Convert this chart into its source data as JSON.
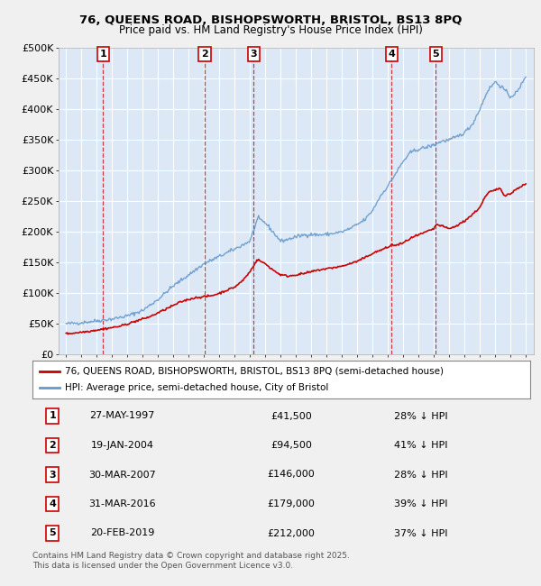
{
  "title_line1": "76, QUEENS ROAD, BISHOPSWORTH, BRISTOL, BS13 8PQ",
  "title_line2": "Price paid vs. HM Land Registry's House Price Index (HPI)",
  "background_color": "#f0f0f0",
  "plot_bg_color": "#dce8f5",
  "grid_color": "#ffffff",
  "transactions": [
    {
      "num": 1,
      "date": "27-MAY-1997",
      "date_num": 1997.41,
      "price": 41500,
      "pct": "28% ↓ HPI"
    },
    {
      "num": 2,
      "date": "19-JAN-2004",
      "date_num": 2004.05,
      "price": 94500,
      "pct": "41% ↓ HPI"
    },
    {
      "num": 3,
      "date": "30-MAR-2007",
      "date_num": 2007.25,
      "price": 146000,
      "pct": "28% ↓ HPI"
    },
    {
      "num": 4,
      "date": "31-MAR-2016",
      "date_num": 2016.25,
      "price": 179000,
      "pct": "39% ↓ HPI"
    },
    {
      "num": 5,
      "date": "20-FEB-2019",
      "date_num": 2019.13,
      "price": 212000,
      "pct": "37% ↓ HPI"
    }
  ],
  "legend_line1": "76, QUEENS ROAD, BISHOPSWORTH, BRISTOL, BS13 8PQ (semi-detached house)",
  "legend_line2": "HPI: Average price, semi-detached house, City of Bristol",
  "footer": "Contains HM Land Registry data © Crown copyright and database right 2025.\nThis data is licensed under the Open Government Licence v3.0.",
  "red_color": "#cc0000",
  "blue_color": "#6699cc",
  "ylim": [
    0,
    500000
  ],
  "xlim": [
    1994.5,
    2025.5
  ],
  "yticks": [
    0,
    50000,
    100000,
    150000,
    200000,
    250000,
    300000,
    350000,
    400000,
    450000,
    500000
  ],
  "ytick_labels": [
    "£0",
    "£50K",
    "£100K",
    "£150K",
    "£200K",
    "£250K",
    "£300K",
    "£350K",
    "£400K",
    "£450K",
    "£500K"
  ],
  "xticks": [
    1995,
    1996,
    1997,
    1998,
    1999,
    2000,
    2001,
    2002,
    2003,
    2004,
    2005,
    2006,
    2007,
    2008,
    2009,
    2010,
    2011,
    2012,
    2013,
    2014,
    2015,
    2016,
    2017,
    2018,
    2019,
    2020,
    2021,
    2022,
    2023,
    2024,
    2025
  ],
  "hpi_anchors": [
    [
      1995.0,
      50000
    ],
    [
      1996.0,
      52000
    ],
    [
      1997.0,
      55000
    ],
    [
      1998.0,
      58000
    ],
    [
      1999.0,
      63000
    ],
    [
      2000.0,
      72000
    ],
    [
      2001.0,
      90000
    ],
    [
      2002.0,
      112000
    ],
    [
      2003.0,
      130000
    ],
    [
      2004.0,
      148000
    ],
    [
      2005.0,
      160000
    ],
    [
      2006.0,
      172000
    ],
    [
      2007.0,
      185000
    ],
    [
      2007.5,
      222000
    ],
    [
      2008.0,
      215000
    ],
    [
      2008.5,
      200000
    ],
    [
      2009.0,
      185000
    ],
    [
      2009.5,
      188000
    ],
    [
      2010.0,
      192000
    ],
    [
      2010.5,
      195000
    ],
    [
      2011.0,
      196000
    ],
    [
      2011.5,
      195000
    ],
    [
      2012.0,
      196000
    ],
    [
      2012.5,
      198000
    ],
    [
      2013.0,
      200000
    ],
    [
      2013.5,
      205000
    ],
    [
      2014.0,
      212000
    ],
    [
      2014.5,
      220000
    ],
    [
      2015.0,
      235000
    ],
    [
      2015.5,
      258000
    ],
    [
      2016.0,
      275000
    ],
    [
      2016.5,
      295000
    ],
    [
      2017.0,
      315000
    ],
    [
      2017.5,
      330000
    ],
    [
      2018.0,
      335000
    ],
    [
      2018.5,
      338000
    ],
    [
      2019.0,
      342000
    ],
    [
      2019.5,
      348000
    ],
    [
      2020.0,
      350000
    ],
    [
      2020.5,
      355000
    ],
    [
      2021.0,
      362000
    ],
    [
      2021.5,
      375000
    ],
    [
      2022.0,
      400000
    ],
    [
      2022.5,
      430000
    ],
    [
      2023.0,
      445000
    ],
    [
      2023.5,
      435000
    ],
    [
      2024.0,
      420000
    ],
    [
      2024.5,
      430000
    ],
    [
      2025.0,
      455000
    ]
  ],
  "pp_anchors": [
    [
      1995.0,
      34000
    ],
    [
      1995.5,
      35000
    ],
    [
      1996.0,
      36500
    ],
    [
      1996.5,
      38000
    ],
    [
      1997.0,
      40000
    ],
    [
      1997.41,
      41500
    ],
    [
      1997.5,
      42000
    ],
    [
      1998.0,
      44000
    ],
    [
      1998.5,
      46000
    ],
    [
      1999.0,
      50000
    ],
    [
      1999.5,
      54000
    ],
    [
      2000.0,
      58000
    ],
    [
      2000.5,
      62000
    ],
    [
      2001.0,
      68000
    ],
    [
      2001.5,
      74000
    ],
    [
      2002.0,
      80000
    ],
    [
      2002.5,
      86000
    ],
    [
      2003.0,
      90000
    ],
    [
      2003.5,
      93000
    ],
    [
      2004.05,
      94500
    ],
    [
      2004.5,
      96000
    ],
    [
      2005.0,
      100000
    ],
    [
      2005.5,
      105000
    ],
    [
      2006.0,
      110000
    ],
    [
      2006.5,
      120000
    ],
    [
      2007.0,
      135000
    ],
    [
      2007.25,
      146000
    ],
    [
      2007.5,
      155000
    ],
    [
      2008.0,
      148000
    ],
    [
      2008.5,
      138000
    ],
    [
      2009.0,
      130000
    ],
    [
      2009.5,
      128000
    ],
    [
      2010.0,
      130000
    ],
    [
      2010.5,
      132000
    ],
    [
      2011.0,
      135000
    ],
    [
      2011.5,
      138000
    ],
    [
      2012.0,
      140000
    ],
    [
      2012.5,
      142000
    ],
    [
      2013.0,
      144000
    ],
    [
      2013.5,
      148000
    ],
    [
      2014.0,
      152000
    ],
    [
      2014.5,
      158000
    ],
    [
      2015.0,
      165000
    ],
    [
      2015.5,
      170000
    ],
    [
      2016.0,
      175000
    ],
    [
      2016.25,
      179000
    ],
    [
      2016.5,
      178000
    ],
    [
      2017.0,
      182000
    ],
    [
      2017.5,
      190000
    ],
    [
      2018.0,
      195000
    ],
    [
      2018.5,
      200000
    ],
    [
      2019.0,
      205000
    ],
    [
      2019.13,
      212000
    ],
    [
      2019.5,
      210000
    ],
    [
      2020.0,
      205000
    ],
    [
      2020.5,
      210000
    ],
    [
      2021.0,
      218000
    ],
    [
      2021.5,
      228000
    ],
    [
      2022.0,
      240000
    ],
    [
      2022.3,
      255000
    ],
    [
      2022.6,
      265000
    ],
    [
      2023.0,
      268000
    ],
    [
      2023.3,
      272000
    ],
    [
      2023.6,
      260000
    ],
    [
      2024.0,
      262000
    ],
    [
      2024.5,
      272000
    ],
    [
      2025.0,
      278000
    ]
  ]
}
